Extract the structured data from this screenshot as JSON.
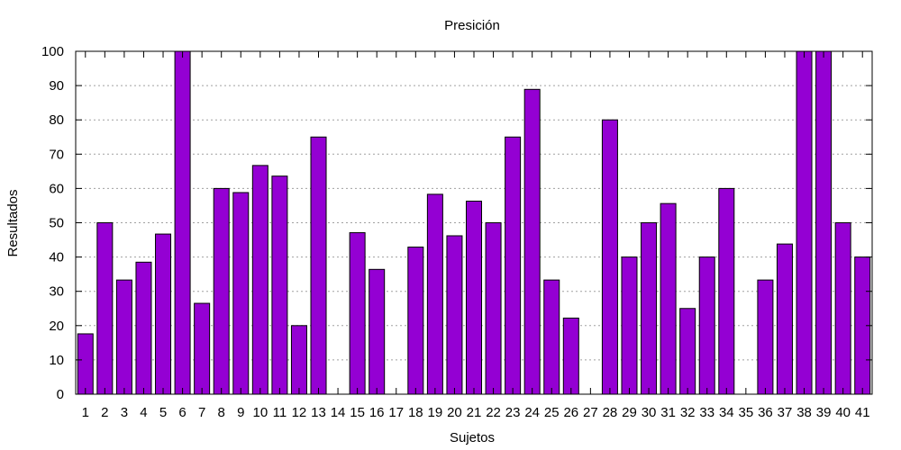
{
  "chart_data": {
    "type": "bar",
    "title": "Presición",
    "xlabel": "Sujetos",
    "ylabel": "Resultados",
    "ylim": [
      0,
      100
    ],
    "yticks": [
      0,
      10,
      20,
      30,
      40,
      50,
      60,
      70,
      80,
      90,
      100
    ],
    "grid": "horizontal dotted",
    "bar_color": "#9400d3",
    "categories": [
      "1",
      "2",
      "3",
      "4",
      "5",
      "6",
      "7",
      "8",
      "9",
      "10",
      "11",
      "12",
      "13",
      "14",
      "15",
      "16",
      "17",
      "18",
      "19",
      "20",
      "21",
      "22",
      "23",
      "24",
      "25",
      "26",
      "27",
      "28",
      "29",
      "30",
      "31",
      "32",
      "33",
      "34",
      "35",
      "36",
      "37",
      "38",
      "39",
      "40",
      "41"
    ],
    "values": [
      17.6,
      50,
      33.3,
      38.5,
      46.7,
      100,
      26.5,
      60,
      58.8,
      66.7,
      63.6,
      20,
      75,
      0,
      47.1,
      36.4,
      0,
      42.9,
      58.3,
      46.2,
      56.3,
      50,
      75,
      88.9,
      33.3,
      22.2,
      0,
      80,
      40,
      50,
      55.6,
      25,
      40,
      60,
      0,
      33.3,
      43.8,
      100,
      100,
      50,
      40
    ]
  }
}
